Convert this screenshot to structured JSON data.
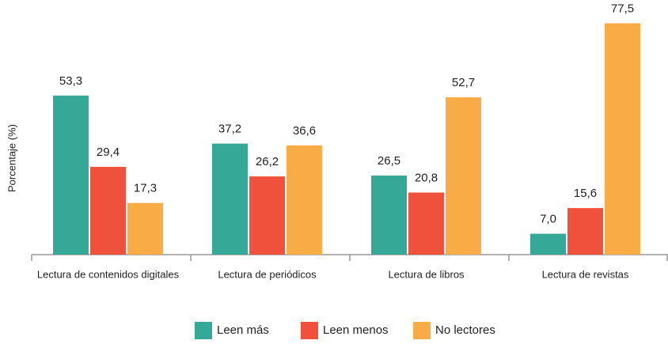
{
  "chart_data": {
    "type": "bar",
    "y_label": "Porcentaje (%)",
    "categories": [
      "Lectura de contenidos digitales",
      "Lectura de periódicos",
      "Lectura de libros",
      "Lectura de revistas"
    ],
    "series": [
      {
        "name": "Leen más",
        "color": "#35a898",
        "values": [
          53.3,
          37.2,
          26.5,
          7.0
        ],
        "value_labels": [
          "53,3",
          "37,2",
          "26,5",
          "7,0"
        ]
      },
      {
        "name": "Leen menos",
        "color": "#f0513c",
        "values": [
          29.4,
          26.2,
          20.8,
          15.6
        ],
        "value_labels": [
          "29,4",
          "26,2",
          "20,8",
          "15,6"
        ]
      },
      {
        "name": "No lectores",
        "color": "#f9ab45",
        "values": [
          17.3,
          36.6,
          52.7,
          77.5
        ],
        "value_labels": [
          "17,3",
          "36,6",
          "52,7",
          "77,5"
        ]
      }
    ],
    "ylim": [
      0,
      80
    ],
    "legend": "bottom"
  }
}
